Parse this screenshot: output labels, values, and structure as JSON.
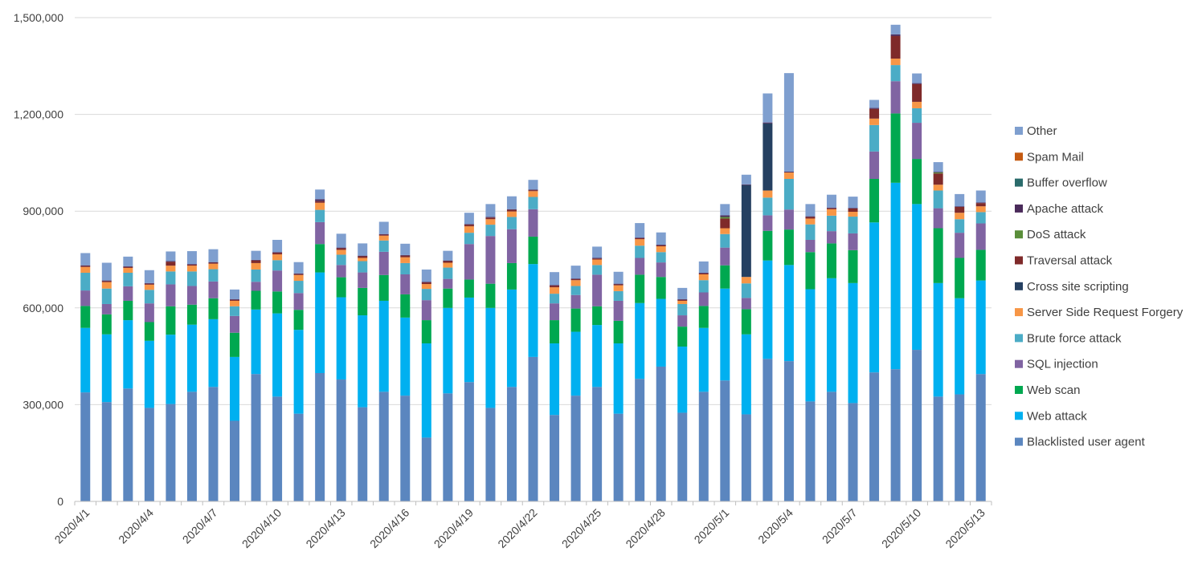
{
  "chart_data": {
    "type": "bar",
    "stacked": true,
    "title": "",
    "xlabel": "",
    "ylabel": "",
    "ylim": [
      0,
      1500000
    ],
    "y_ticks": [
      0,
      300000,
      600000,
      900000,
      1200000,
      1500000
    ],
    "y_tick_labels": [
      "0",
      "300,000",
      "600,000",
      "900,000",
      "1,200,000",
      "1,500,000"
    ],
    "grid": "horizontal",
    "legend_position": "right",
    "x_tick_labels": [
      "2020/4/1",
      "2020/4/4",
      "2020/4/7",
      "2020/4/10",
      "2020/4/13",
      "2020/4/16",
      "2020/4/19",
      "2020/4/22",
      "2020/4/25",
      "2020/4/28",
      "2020/5/1",
      "2020/5/4",
      "2020/5/7",
      "2020/5/10",
      "2020/5/13"
    ],
    "categories": [
      "2020/4/1",
      "2020/4/2",
      "2020/4/3",
      "2020/4/4",
      "2020/4/5",
      "2020/4/6",
      "2020/4/7",
      "2020/4/8",
      "2020/4/9",
      "2020/4/10",
      "2020/4/11",
      "2020/4/12",
      "2020/4/13",
      "2020/4/14",
      "2020/4/15",
      "2020/4/16",
      "2020/4/17",
      "2020/4/18",
      "2020/4/19",
      "2020/4/20",
      "2020/4/21",
      "2020/4/22",
      "2020/4/23",
      "2020/4/24",
      "2020/4/25",
      "2020/4/26",
      "2020/4/27",
      "2020/4/28",
      "2020/4/29",
      "2020/4/30",
      "2020/5/1",
      "2020/5/2",
      "2020/5/3",
      "2020/5/4",
      "2020/5/5",
      "2020/5/6",
      "2020/5/7",
      "2020/5/8",
      "2020/5/9",
      "2020/5/10",
      "2020/5/11",
      "2020/5/12",
      "2020/5/13"
    ],
    "series": [
      {
        "name": "Blacklisted user agent",
        "color": "#5b86bf",
        "values": [
          338000,
          308000,
          350000,
          290000,
          302000,
          340000,
          355000,
          250000,
          395000,
          325000,
          272000,
          398000,
          378000,
          292000,
          340000,
          328000,
          198000,
          335000,
          370000,
          290000,
          355000,
          448000,
          268000,
          328000,
          355000,
          272000,
          380000,
          418000,
          275000,
          340000,
          375000,
          270000,
          442000,
          435000,
          310000,
          340000,
          305000,
          400000,
          410000,
          470000,
          325000,
          332000,
          395000
        ]
      },
      {
        "name": "Web attack",
        "color": "#00b0f0",
        "values": [
          200000,
          210000,
          212000,
          208000,
          215000,
          208000,
          210000,
          198000,
          200000,
          258000,
          260000,
          312000,
          255000,
          285000,
          282000,
          242000,
          292000,
          265000,
          262000,
          310000,
          302000,
          288000,
          222000,
          198000,
          192000,
          218000,
          235000,
          210000,
          205000,
          198000,
          285000,
          248000,
          305000,
          298000,
          348000,
          352000,
          372000,
          465000,
          578000,
          452000,
          352000,
          298000,
          290000
        ]
      },
      {
        "name": "Web scan",
        "color": "#00a850",
        "values": [
          68000,
          62000,
          60000,
          58000,
          88000,
          62000,
          65000,
          75000,
          58000,
          68000,
          62000,
          88000,
          62000,
          85000,
          80000,
          72000,
          72000,
          60000,
          56000,
          75000,
          82000,
          85000,
          72000,
          72000,
          58000,
          70000,
          88000,
          68000,
          62000,
          68000,
          72000,
          78000,
          92000,
          110000,
          115000,
          108000,
          102000,
          135000,
          215000,
          140000,
          170000,
          125000,
          95000
        ]
      },
      {
        "name": "SQL injection",
        "color": "#8064a2",
        "values": [
          48000,
          32000,
          45000,
          58000,
          68000,
          58000,
          52000,
          52000,
          28000,
          65000,
          52000,
          68000,
          38000,
          48000,
          72000,
          62000,
          62000,
          30000,
          110000,
          148000,
          105000,
          85000,
          52000,
          42000,
          98000,
          62000,
          52000,
          45000,
          35000,
          42000,
          55000,
          35000,
          48000,
          62000,
          38000,
          38000,
          52000,
          85000,
          100000,
          112000,
          62000,
          78000,
          82000
        ]
      },
      {
        "name": "Brute force attack",
        "color": "#4bacc6",
        "values": [
          55000,
          48000,
          42000,
          42000,
          40000,
          45000,
          38000,
          30000,
          38000,
          32000,
          38000,
          38000,
          32000,
          35000,
          35000,
          35000,
          35000,
          35000,
          35000,
          35000,
          38000,
          38000,
          30000,
          28000,
          30000,
          30000,
          38000,
          32000,
          35000,
          38000,
          42000,
          45000,
          55000,
          95000,
          48000,
          48000,
          52000,
          82000,
          50000,
          45000,
          55000,
          42000,
          35000
        ]
      },
      {
        "name": "Server Side Request Forgery",
        "color": "#f79646",
        "values": [
          18000,
          20000,
          15000,
          16000,
          18000,
          18000,
          17000,
          17000,
          20000,
          18000,
          18000,
          22000,
          15000,
          10000,
          15000,
          18000,
          15000,
          15000,
          20000,
          17000,
          17000,
          18000,
          20000,
          18000,
          17000,
          18000,
          20000,
          18000,
          10000,
          18000,
          18000,
          20000,
          22000,
          20000,
          18000,
          20000,
          15000,
          20000,
          20000,
          20000,
          18000,
          20000,
          18000
        ]
      },
      {
        "name": "Cross site scripting",
        "color": "#254061",
        "values": [
          0,
          0,
          0,
          0,
          0,
          0,
          0,
          0,
          0,
          0,
          0,
          0,
          0,
          0,
          0,
          0,
          0,
          0,
          0,
          0,
          0,
          0,
          0,
          0,
          0,
          0,
          0,
          0,
          0,
          0,
          0,
          285000,
          208000,
          0,
          0,
          0,
          0,
          0,
          0,
          0,
          0,
          0,
          0
        ]
      },
      {
        "name": "Traversal attack",
        "color": "#7f2a2a",
        "values": [
          3000,
          3000,
          3000,
          3000,
          12000,
          3000,
          3000,
          3000,
          8000,
          5000,
          3000,
          5000,
          5000,
          5000,
          3000,
          5000,
          5000,
          5000,
          5000,
          5000,
          5000,
          3000,
          5000,
          3000,
          3000,
          3000,
          3000,
          3000,
          3000,
          3000,
          30000,
          0,
          0,
          0,
          5000,
          3000,
          10000,
          30000,
          70000,
          55000,
          35000,
          18000,
          10000
        ]
      },
      {
        "name": "DoS attack",
        "color": "#5a8e3a",
        "values": [
          0,
          0,
          0,
          0,
          0,
          0,
          0,
          0,
          0,
          0,
          0,
          0,
          0,
          0,
          0,
          0,
          0,
          0,
          0,
          0,
          0,
          0,
          0,
          0,
          0,
          0,
          0,
          0,
          0,
          0,
          5000,
          0,
          0,
          0,
          0,
          0,
          0,
          0,
          0,
          0,
          3000,
          0,
          0
        ]
      },
      {
        "name": "Apache attack",
        "color": "#4a2a5a",
        "values": [
          2000,
          2000,
          2000,
          2000,
          2000,
          2000,
          2000,
          2000,
          2000,
          2000,
          2000,
          6000,
          2000,
          2000,
          2000,
          2000,
          2000,
          2000,
          2000,
          2000,
          2000,
          2000,
          2000,
          2000,
          2000,
          2000,
          2000,
          2000,
          2000,
          2000,
          5000,
          2000,
          3000,
          3000,
          2000,
          2000,
          2000,
          3000,
          5000,
          3000,
          2000,
          2000,
          2000
        ]
      },
      {
        "name": "Buffer overflow",
        "color": "#2a6b6b",
        "values": [
          0,
          0,
          0,
          0,
          0,
          0,
          0,
          0,
          0,
          0,
          0,
          0,
          0,
          0,
          0,
          0,
          0,
          0,
          0,
          0,
          0,
          0,
          0,
          0,
          0,
          0,
          0,
          0,
          0,
          0,
          0,
          0,
          0,
          0,
          0,
          0,
          0,
          0,
          0,
          0,
          0,
          0,
          0
        ]
      },
      {
        "name": "Spam Mail",
        "color": "#c55a11",
        "values": [
          0,
          0,
          0,
          0,
          0,
          0,
          0,
          0,
          0,
          0,
          0,
          0,
          0,
          0,
          0,
          0,
          0,
          0,
          0,
          0,
          0,
          0,
          0,
          0,
          0,
          0,
          0,
          0,
          0,
          0,
          0,
          0,
          0,
          0,
          0,
          0,
          0,
          0,
          0,
          0,
          0,
          0,
          0
        ]
      },
      {
        "name": "Other",
        "color": "#7f9fcf",
        "values": [
          38000,
          55000,
          30000,
          40000,
          30000,
          40000,
          40000,
          30000,
          28000,
          38000,
          35000,
          30000,
          43000,
          38000,
          38000,
          35000,
          38000,
          30000,
          35000,
          40000,
          40000,
          30000,
          40000,
          40000,
          35000,
          37000,
          45000,
          38000,
          35000,
          35000,
          35000,
          30000,
          90000,
          305000,
          38000,
          40000,
          35000,
          25000,
          30000,
          30000,
          30000,
          38000,
          37000
        ]
      }
    ]
  }
}
